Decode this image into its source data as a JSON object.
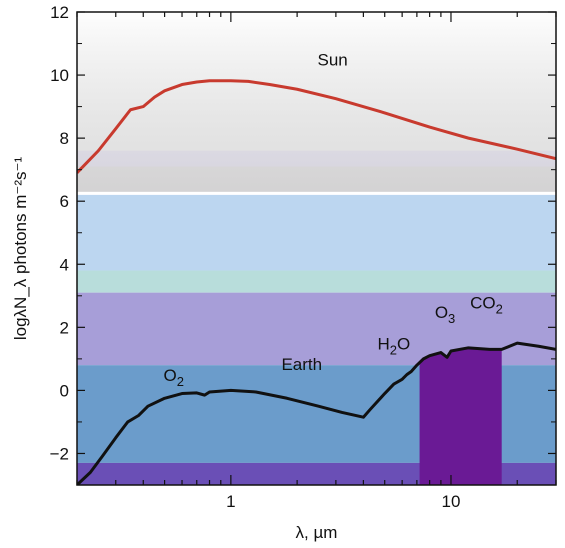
{
  "chart_data": {
    "type": "line",
    "title": "",
    "xlabel": "λ, µm",
    "ylabel": "logλN_λ photons m⁻²s⁻¹",
    "x_scale": "log",
    "xlim": [
      0.2,
      30
    ],
    "ylim": [
      -3,
      12
    ],
    "x_ticks": [
      {
        "value": 1,
        "label": "1"
      },
      {
        "value": 10,
        "label": "10"
      }
    ],
    "y_ticks": [
      {
        "value": -2,
        "label": "−2"
      },
      {
        "value": 0,
        "label": "0"
      },
      {
        "value": 2,
        "label": "2"
      },
      {
        "value": 4,
        "label": "4"
      },
      {
        "value": 6,
        "label": "6"
      },
      {
        "value": 8,
        "label": "8"
      },
      {
        "value": 10,
        "label": "10"
      },
      {
        "value": 12,
        "label": "12"
      }
    ],
    "background_bands": [
      {
        "from": 6.3,
        "to": 12,
        "color": "#eeeeee"
      },
      {
        "from": 6.3,
        "to": 7.1,
        "color": "#d9d7d9"
      },
      {
        "from": 7.1,
        "to": 7.6,
        "color": "#ddd8f0"
      },
      {
        "from": 3.2,
        "to": 6.2,
        "color": "#bcd6f0"
      },
      {
        "from": 3.2,
        "to": 3.8,
        "color": "#c6dcee"
      },
      {
        "from": 3.1,
        "to": 3.8,
        "color": "#b8dddb"
      },
      {
        "from": 0.8,
        "to": 3.1,
        "color": "#a79ed8"
      },
      {
        "from": -2.3,
        "to": 0.8,
        "color": "#6b9ccb"
      },
      {
        "from": -3,
        "to": -2.3,
        "color": "#6a4fb6"
      }
    ],
    "series": [
      {
        "name": "Sun",
        "color": "#c83a2e",
        "points": [
          [
            0.2,
            6.9
          ],
          [
            0.25,
            7.6
          ],
          [
            0.3,
            8.3
          ],
          [
            0.35,
            8.9
          ],
          [
            0.4,
            9.0
          ],
          [
            0.45,
            9.3
          ],
          [
            0.5,
            9.5
          ],
          [
            0.6,
            9.7
          ],
          [
            0.7,
            9.78
          ],
          [
            0.8,
            9.82
          ],
          [
            1.0,
            9.82
          ],
          [
            1.2,
            9.8
          ],
          [
            1.5,
            9.7
          ],
          [
            2,
            9.55
          ],
          [
            3,
            9.25
          ],
          [
            5,
            8.8
          ],
          [
            8,
            8.35
          ],
          [
            12,
            8.0
          ],
          [
            20,
            7.65
          ],
          [
            30,
            7.35
          ]
        ]
      },
      {
        "name": "Earth",
        "color": "#111111",
        "points": [
          [
            0.2,
            -3.0
          ],
          [
            0.23,
            -2.6
          ],
          [
            0.26,
            -2.1
          ],
          [
            0.3,
            -1.5
          ],
          [
            0.34,
            -1.0
          ],
          [
            0.38,
            -0.8
          ],
          [
            0.42,
            -0.5
          ],
          [
            0.5,
            -0.25
          ],
          [
            0.6,
            -0.1
          ],
          [
            0.7,
            -0.08
          ],
          [
            0.76,
            -0.15
          ],
          [
            0.8,
            -0.05
          ],
          [
            1.0,
            0.0
          ],
          [
            1.3,
            -0.05
          ],
          [
            1.8,
            -0.25
          ],
          [
            2.5,
            -0.5
          ],
          [
            3.2,
            -0.7
          ],
          [
            4,
            -0.85
          ],
          [
            4.3,
            -0.6
          ],
          [
            5,
            -0.1
          ],
          [
            5.5,
            0.2
          ],
          [
            6,
            0.35
          ],
          [
            6.3,
            0.5
          ],
          [
            6.6,
            0.6
          ],
          [
            7,
            0.8
          ],
          [
            7.5,
            1.0
          ],
          [
            8,
            1.1
          ],
          [
            9,
            1.2
          ],
          [
            9.6,
            1.05
          ],
          [
            10,
            1.25
          ],
          [
            12,
            1.35
          ],
          [
            15,
            1.3
          ],
          [
            17,
            1.3
          ],
          [
            20,
            1.5
          ],
          [
            25,
            1.4
          ],
          [
            30,
            1.3
          ]
        ]
      }
    ],
    "filled_band": {
      "x_from": 7.2,
      "x_to": 17.0,
      "color": "#6a1a95"
    },
    "annotations": [
      {
        "text": "Sun",
        "x": 2.9,
        "y": 10.3
      },
      {
        "text": "Earth",
        "x": 2.1,
        "y": 0.65
      },
      {
        "text": "O",
        "sub": "2",
        "x": 0.55,
        "y": 0.3
      },
      {
        "text": "H",
        "sub": "2",
        "after": "O",
        "x": 5.5,
        "y": 1.3
      },
      {
        "text": "O",
        "sub": "3",
        "x": 9.4,
        "y": 2.3
      },
      {
        "text": "CO",
        "sub": "2",
        "x": 14.5,
        "y": 2.6
      }
    ]
  }
}
